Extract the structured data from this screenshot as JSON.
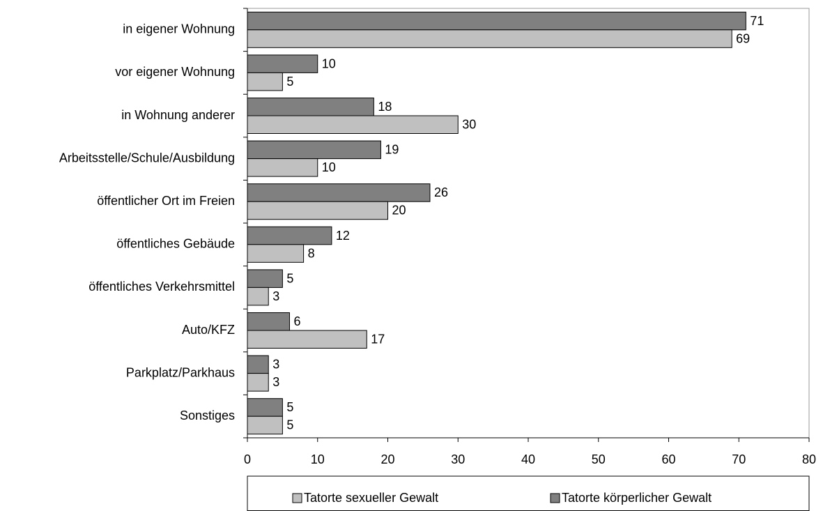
{
  "chart_data": {
    "type": "bar",
    "orientation": "horizontal",
    "categories": [
      "in eigener Wohnung",
      "vor eigener Wohnung",
      "in Wohnung anderer",
      "Arbeitsstelle/Schule/Ausbildung",
      "öffentlicher Ort im Freien",
      "öffentliches Gebäude",
      "öffentliches Verkehrsmittel",
      "Auto/KFZ",
      "Parkplatz/Parkhaus",
      "Sonstiges"
    ],
    "series": [
      {
        "name": "Tatorte sexueller Gewalt",
        "color": "#c0c0c0",
        "values": [
          69,
          5,
          30,
          10,
          20,
          8,
          3,
          17,
          3,
          5
        ]
      },
      {
        "name": "Tatorte körperlicher Gewalt",
        "color": "#808080",
        "values": [
          71,
          10,
          18,
          19,
          26,
          12,
          5,
          6,
          3,
          5
        ]
      }
    ],
    "xlim": [
      0,
      80
    ],
    "xticks": [
      0,
      10,
      20,
      30,
      40,
      50,
      60,
      70,
      80
    ],
    "legend": "bottom"
  }
}
